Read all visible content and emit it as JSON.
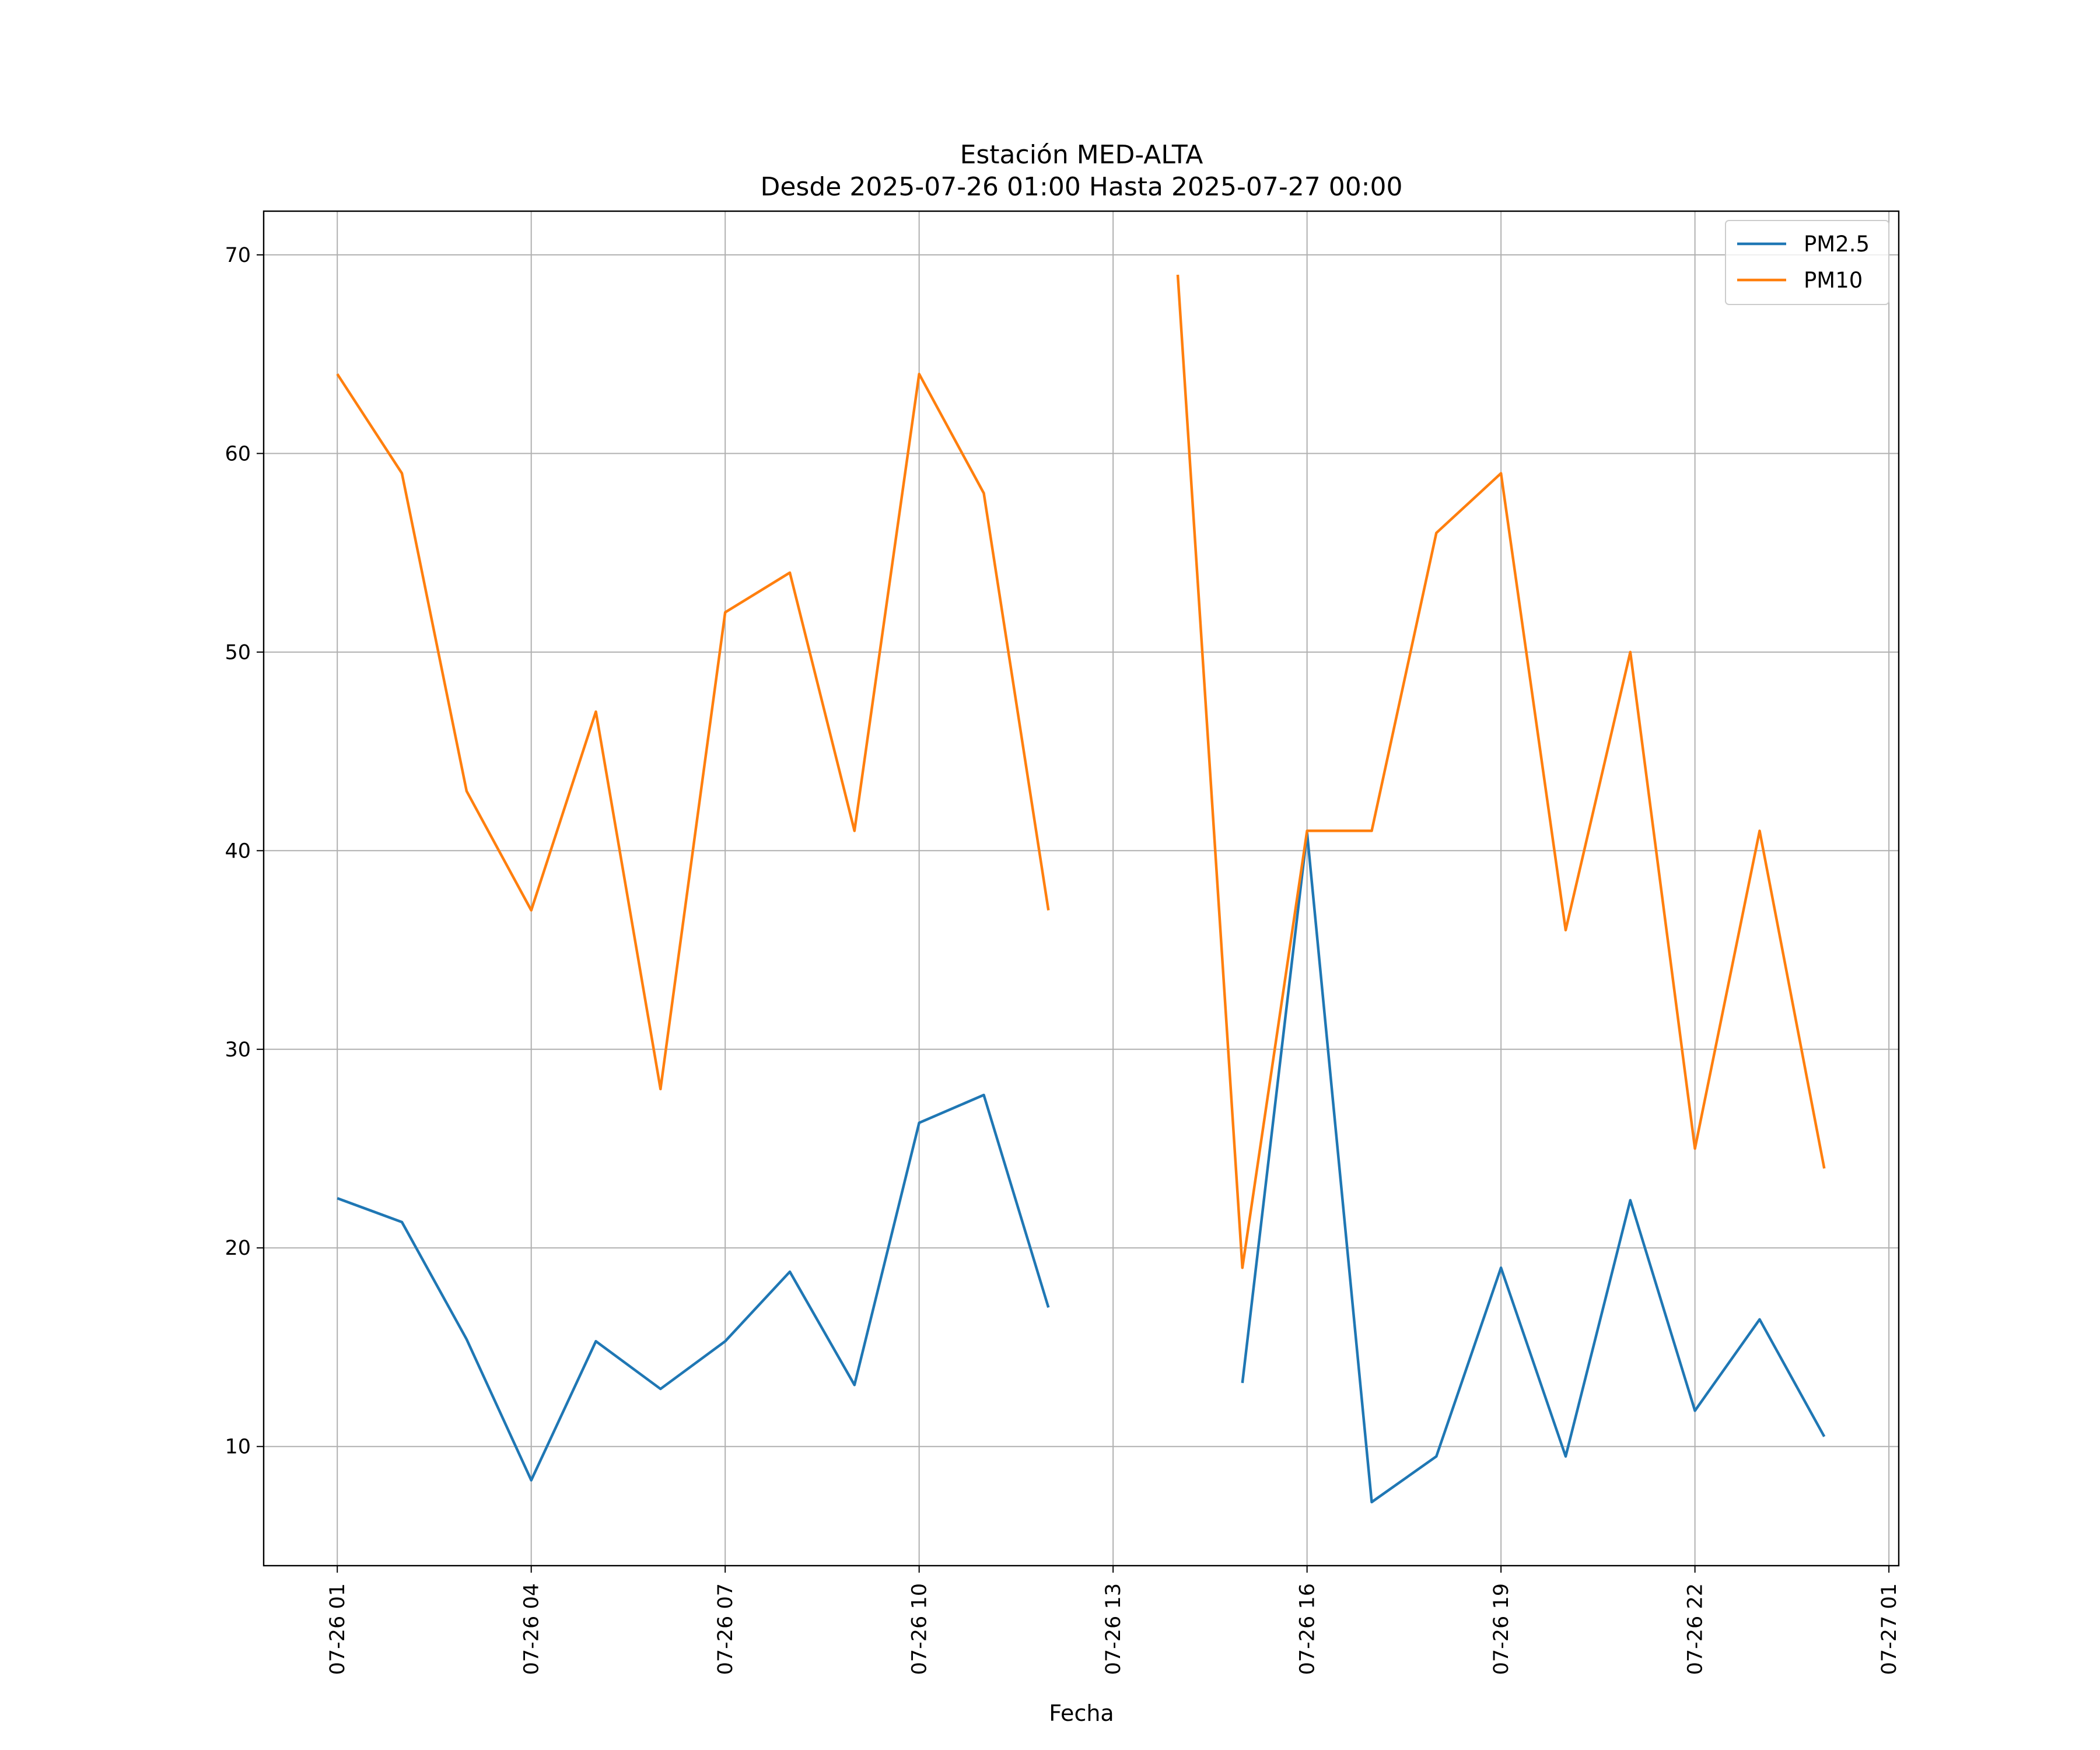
{
  "chart_data": {
    "type": "line",
    "title": "Estación MED-ALTA",
    "subtitle": "Desde 2025-07-26 01:00 Hasta 2025-07-27 00:00",
    "xlabel": "Fecha",
    "ylabel": "",
    "x": [
      "07-26 01:00",
      "07-26 02:00",
      "07-26 03:00",
      "07-26 04:00",
      "07-26 05:00",
      "07-26 06:00",
      "07-26 07:00",
      "07-26 08:00",
      "07-26 09:00",
      "07-26 10:00",
      "07-26 11:00",
      "07-26 12:00",
      "07-26 13:00",
      "07-26 14:00",
      "07-26 15:00",
      "07-26 16:00",
      "07-26 17:00",
      "07-26 18:00",
      "07-26 19:00",
      "07-26 20:00",
      "07-26 21:00",
      "07-26 22:00",
      "07-26 23:00",
      "07-27 00:00"
    ],
    "x_ticks": [
      "07-26 01",
      "07-26 04",
      "07-26 07",
      "07-26 10",
      "07-26 13",
      "07-26 16",
      "07-26 19",
      "07-26 22",
      "07-27 01"
    ],
    "y_ticks": [
      10,
      20,
      30,
      40,
      50,
      60,
      70
    ],
    "ylim": [
      4,
      72.2
    ],
    "grid": true,
    "legend": "top-right",
    "series": [
      {
        "name": "PM2.5",
        "color": "#1f77b4",
        "values": [
          22.5,
          21.3,
          15.4,
          8.3,
          15.3,
          12.9,
          15.3,
          18.8,
          13.1,
          26.3,
          27.7,
          17.0,
          null,
          null,
          13.2,
          40.9,
          7.2,
          9.5,
          19.0,
          9.5,
          22.4,
          11.8,
          16.4,
          10.5
        ]
      },
      {
        "name": "PM10",
        "color": "#ff7f0e",
        "values": [
          64,
          59,
          43,
          37,
          47,
          28,
          52,
          54,
          41,
          64,
          58,
          37,
          null,
          69,
          19,
          41,
          41,
          56,
          59,
          36,
          50,
          25,
          41,
          24
        ]
      }
    ]
  }
}
